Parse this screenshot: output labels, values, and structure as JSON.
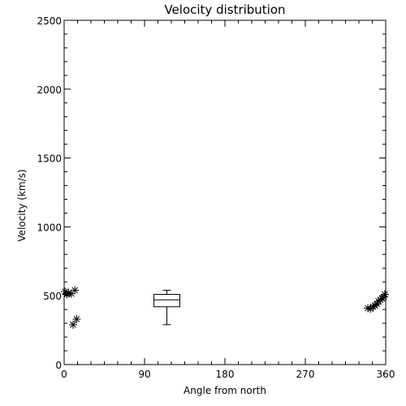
{
  "chart_data": {
    "type": "scatter",
    "title": "Velocity distribution",
    "xlabel": "Angle from north",
    "ylabel": "Velocity (km/s)",
    "xlim": [
      0,
      360
    ],
    "ylim": [
      0,
      2500
    ],
    "xticks": [
      0,
      90,
      180,
      270,
      360
    ],
    "yticks": [
      0,
      500,
      1000,
      1500,
      2000,
      2500
    ],
    "grid": false,
    "points": [
      {
        "x": 1,
        "y": 530
      },
      {
        "x": 3,
        "y": 510
      },
      {
        "x": 5,
        "y": 520
      },
      {
        "x": 8,
        "y": 515
      },
      {
        "x": 12,
        "y": 540
      },
      {
        "x": 10,
        "y": 290
      },
      {
        "x": 14,
        "y": 330
      },
      {
        "x": 340,
        "y": 410
      },
      {
        "x": 343,
        "y": 405
      },
      {
        "x": 346,
        "y": 420
      },
      {
        "x": 348,
        "y": 430
      },
      {
        "x": 350,
        "y": 440
      },
      {
        "x": 352,
        "y": 460
      },
      {
        "x": 354,
        "y": 470
      },
      {
        "x": 356,
        "y": 480
      },
      {
        "x": 358,
        "y": 490
      },
      {
        "x": 359,
        "y": 510
      }
    ],
    "boxplot": {
      "x": 115,
      "min": 290,
      "q1": 420,
      "median": 470,
      "q3": 510,
      "max": 540
    }
  }
}
